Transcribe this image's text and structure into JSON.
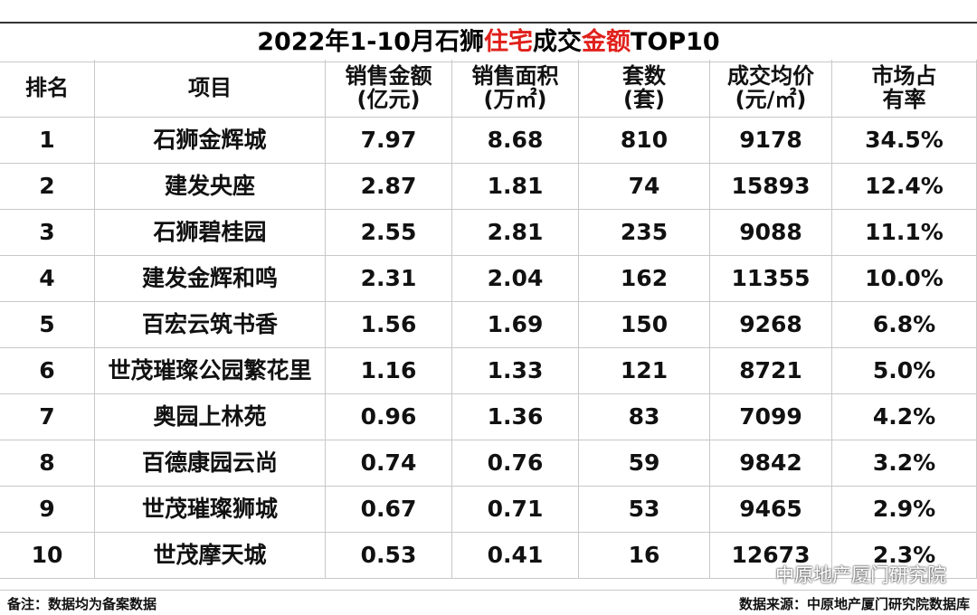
{
  "title": {
    "parts": [
      "2022年1-10月石狮",
      "住宅",
      "成交",
      "金额",
      "TOP10"
    ]
  },
  "table": {
    "headers": [
      [
        "排名"
      ],
      [
        "项目"
      ],
      [
        "销售金额",
        "(亿元)"
      ],
      [
        "销售面积",
        "(万㎡)"
      ],
      [
        "套数",
        "(套)"
      ],
      [
        "成交均价",
        "(元/㎡)"
      ],
      [
        "市场占",
        "有率"
      ]
    ],
    "rows": [
      [
        "1",
        "石狮金辉城",
        "7.97",
        "8.68",
        "810",
        "9178",
        "34.5%"
      ],
      [
        "2",
        "建发央座",
        "2.87",
        "1.81",
        "74",
        "15893",
        "12.4%"
      ],
      [
        "3",
        "石狮碧桂园",
        "2.55",
        "2.81",
        "235",
        "9088",
        "11.1%"
      ],
      [
        "4",
        "建发金辉和鸣",
        "2.31",
        "2.04",
        "162",
        "11355",
        "10.0%"
      ],
      [
        "5",
        "百宏云筑书香",
        "1.56",
        "1.69",
        "150",
        "9268",
        "6.8%"
      ],
      [
        "6",
        "世茂璀璨公园繁花里",
        "1.16",
        "1.33",
        "121",
        "8721",
        "5.0%"
      ],
      [
        "7",
        "奥园上林苑",
        "0.96",
        "1.36",
        "83",
        "7099",
        "4.2%"
      ],
      [
        "8",
        "百德康园云尚",
        "0.74",
        "0.76",
        "59",
        "9842",
        "3.2%"
      ],
      [
        "9",
        "世茂璀璨狮城",
        "0.67",
        "0.71",
        "53",
        "9465",
        "2.9%"
      ],
      [
        "10",
        "世茂摩天城",
        "0.53",
        "0.41",
        "16",
        "12673",
        "2.3%"
      ]
    ]
  },
  "watermark": "中原地产厦门研究院",
  "footer": {
    "note": "备注：数据均为备案数据",
    "source": "数据来源：中原地产厦门研究院数据库"
  }
}
